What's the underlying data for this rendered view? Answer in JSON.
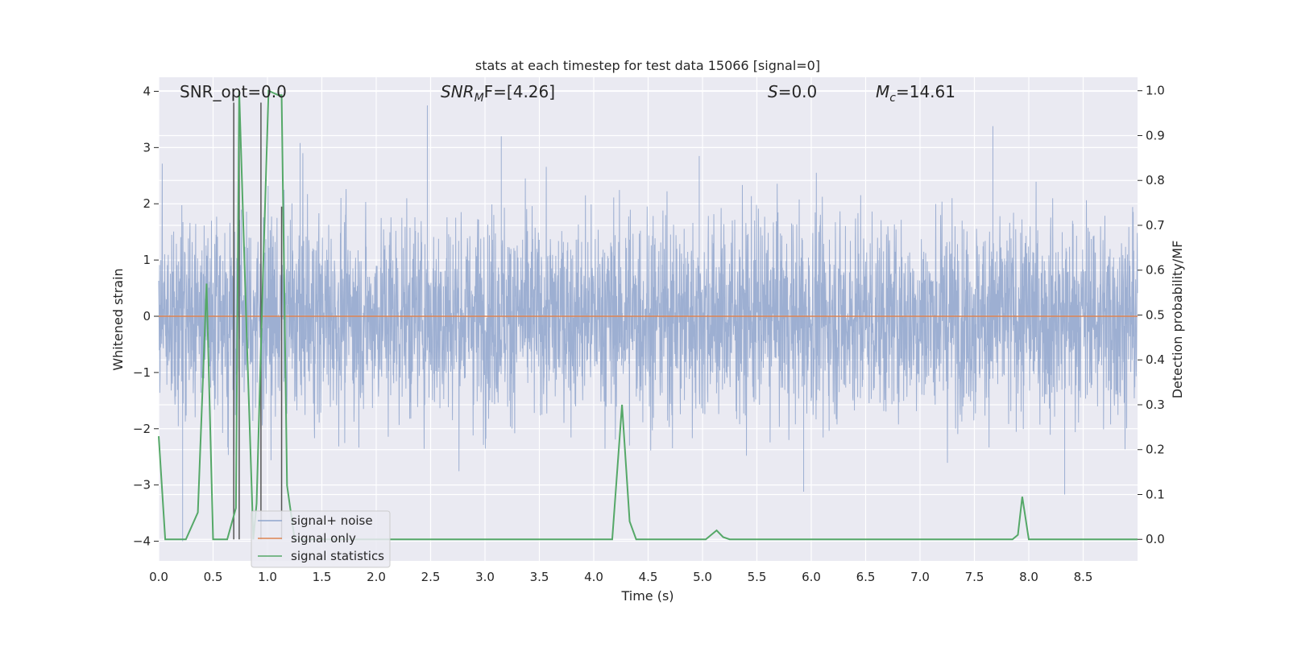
{
  "chart_data": {
    "type": "line",
    "title": "stats at each timestep for test data 15066 [signal=0]",
    "xlabel": "Time (s)",
    "ylabel": "Whitened strain",
    "ylabel_right": "Detection probability/MF",
    "xlim": [
      0.0,
      9.0
    ],
    "ylim": [
      -4.35,
      4.25
    ],
    "ylim_right": [
      -0.048,
      1.03
    ],
    "grid": true,
    "legend_position": "lower-left",
    "x_ticks": [
      "0.0",
      "0.5",
      "1.0",
      "1.5",
      "2.0",
      "2.5",
      "3.0",
      "3.5",
      "4.0",
      "4.5",
      "5.0",
      "5.5",
      "6.0",
      "6.5",
      "7.0",
      "7.5",
      "8.0",
      "8.5"
    ],
    "y_ticks": [
      "4",
      "3",
      "2",
      "1",
      "0",
      "−1",
      "−2",
      "−3",
      "−4"
    ],
    "y_right_ticks": [
      "1.0",
      "0.9",
      "0.8",
      "0.7",
      "0.6",
      "0.5",
      "0.4",
      "0.3",
      "0.2",
      "0.1",
      "0.0"
    ],
    "annotations": {
      "snr_opt": "SNR_opt=0.0",
      "snr_mf_main": "SNR",
      "snr_mf_sub": "M",
      "snr_mf_rest": "F=[4.26]",
      "s_main": "S",
      "s_rest": "=0.0",
      "mc_main": "M",
      "mc_sub": "c",
      "mc_rest": "=14.61"
    },
    "series": [
      {
        "name": "signal+ noise",
        "color": "#8fa5cc",
        "description_type": "noise",
        "typical_amplitude": 1.6,
        "peaks": [
          {
            "x": 0.22,
            "y": -4.0
          },
          {
            "x": 2.47,
            "y": 3.75
          },
          {
            "x": 3.15,
            "y": 3.2
          },
          {
            "x": 7.67,
            "y": 3.38
          },
          {
            "x": 5.93,
            "y": -3.12
          },
          {
            "x": 8.33,
            "y": -3.17
          },
          {
            "x": 1.3,
            "y": 3.08
          },
          {
            "x": 4.97,
            "y": 2.85
          }
        ]
      },
      {
        "name": "signal only",
        "color": "#dd8452",
        "x": [
          0.0,
          9.0
        ],
        "y": [
          0.0,
          0.0
        ]
      },
      {
        "name": "signal statistics",
        "color": "#55a868",
        "axis": "right",
        "x": [
          0.0,
          0.06,
          0.12,
          0.25,
          0.36,
          0.44,
          0.5,
          0.63,
          0.71,
          0.74,
          0.81,
          0.87,
          0.9,
          0.96,
          1.01,
          1.1,
          1.13,
          1.18,
          1.25,
          4.17,
          4.26,
          4.33,
          4.39,
          5.03,
          5.08,
          5.13,
          5.19,
          5.25,
          7.85,
          7.9,
          7.94,
          8.0,
          9.0
        ],
        "y": [
          0.23,
          0.0,
          0.0,
          0.0,
          0.06,
          0.57,
          0.0,
          0.0,
          0.07,
          1.0,
          0.45,
          0.0,
          0.08,
          0.6,
          1.0,
          0.99,
          0.99,
          0.12,
          0.0,
          0.0,
          0.3,
          0.04,
          0.0,
          0.0,
          0.01,
          0.02,
          0.005,
          0.0,
          0.0,
          0.01,
          0.095,
          0.0,
          0.0
        ]
      }
    ],
    "vertical_markers": {
      "color": "#555555",
      "x": [
        0.69,
        0.74,
        0.94,
        1.13
      ],
      "top_y": [
        3.8,
        3.8,
        3.8,
        1.95
      ]
    },
    "colors": {
      "plot_bg": "#eaeaf2",
      "grid": "#ffffff",
      "text": "#262626"
    }
  }
}
